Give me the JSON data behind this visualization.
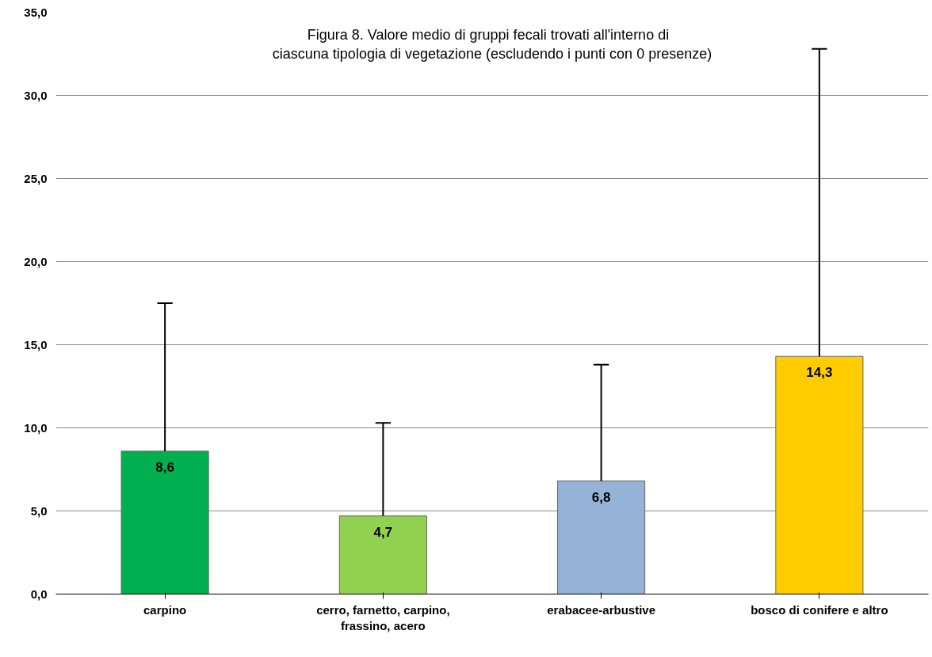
{
  "chart_data": {
    "type": "bar",
    "title": "Figura  8.  Valore medio di gruppi fecali trovati all'interno di ciascuna tipologia di vegetazione (escludendo i punti con 0 presenze)",
    "categories": [
      "carpino",
      "cerro, farnetto, carpino, frassino, acero",
      "erabacee-arbustive",
      "bosco di conifere e altro"
    ],
    "values": [
      8.6,
      4.7,
      6.8,
      14.3
    ],
    "colors": [
      "#00b050",
      "#92d050",
      "#95b3d7",
      "#ffcc00"
    ],
    "errors": [
      [
        8.6,
        17.5
      ],
      [
        4.7,
        10.3
      ],
      [
        6.8,
        13.8
      ],
      [
        14.3,
        32.8
      ]
    ],
    "value_labels": [
      "8,6",
      "4,7",
      "6,8",
      "14,3"
    ],
    "ylim": [
      0,
      35
    ],
    "yticks": [
      {
        "value": 0,
        "label": "0,0"
      },
      {
        "value": 5,
        "label": "5,0"
      },
      {
        "value": 10,
        "label": "10,0"
      },
      {
        "value": 15,
        "label": "15,0"
      },
      {
        "value": 20,
        "label": "20,0"
      },
      {
        "value": 25,
        "label": "25,0"
      },
      {
        "value": 30,
        "label": "30,0"
      },
      {
        "value": 35,
        "label": "35,0"
      }
    ],
    "grid": "y"
  }
}
